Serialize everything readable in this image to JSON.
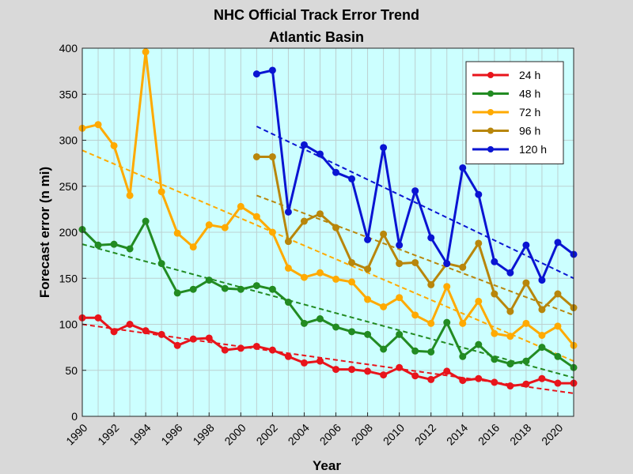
{
  "chart_data": {
    "type": "line",
    "title": "NHC Official Track Error Trend",
    "subtitle": "Atlantic Basin",
    "xlabel": "Year",
    "ylabel": "Forecast error (n mi)",
    "xlim": [
      1990,
      2021
    ],
    "ylim": [
      0,
      400
    ],
    "xticks": [
      "1990",
      "1992",
      "1994",
      "1996",
      "1998",
      "2000",
      "2002",
      "2004",
      "2006",
      "2008",
      "2010",
      "2012",
      "2014",
      "2016",
      "2018",
      "2020"
    ],
    "yticks": [
      "0",
      "50",
      "100",
      "150",
      "200",
      "250",
      "300",
      "350",
      "400"
    ],
    "grid": true,
    "legend_position": "top-right",
    "series": [
      {
        "name": "24 h",
        "color": "#e8141b",
        "x": [
          1990,
          1991,
          1992,
          1993,
          1994,
          1995,
          1996,
          1997,
          1998,
          1999,
          2000,
          2001,
          2002,
          2003,
          2004,
          2005,
          2006,
          2007,
          2008,
          2009,
          2010,
          2011,
          2012,
          2013,
          2014,
          2015,
          2016,
          2017,
          2018,
          2019,
          2020,
          2021
        ],
        "values": [
          107,
          107,
          92,
          100,
          93,
          89,
          77,
          84,
          85,
          72,
          74,
          76,
          72,
          65,
          58,
          60,
          51,
          51,
          49,
          45,
          53,
          44,
          40,
          49,
          39,
          41,
          37,
          33,
          35,
          41,
          36,
          36
        ],
        "trend": [
          100,
          25
        ]
      },
      {
        "name": "48 h",
        "color": "#228b22",
        "x": [
          1990,
          1991,
          1992,
          1993,
          1994,
          1995,
          1996,
          1997,
          1998,
          1999,
          2000,
          2001,
          2002,
          2003,
          2004,
          2005,
          2006,
          2007,
          2008,
          2009,
          2010,
          2011,
          2012,
          2013,
          2014,
          2015,
          2016,
          2017,
          2018,
          2019,
          2020,
          2021
        ],
        "values": [
          203,
          186,
          187,
          182,
          212,
          166,
          134,
          138,
          148,
          139,
          138,
          142,
          138,
          124,
          101,
          106,
          97,
          92,
          89,
          73,
          89,
          71,
          70,
          102,
          65,
          78,
          62,
          57,
          60,
          75,
          65,
          53
        ],
        "trend": [
          187,
          42
        ]
      },
      {
        "name": "72 h",
        "color": "#ffaa00",
        "x": [
          1990,
          1991,
          1992,
          1993,
          1994,
          1995,
          1996,
          1997,
          1998,
          1999,
          2000,
          2001,
          2002,
          2003,
          2004,
          2005,
          2006,
          2007,
          2008,
          2009,
          2010,
          2011,
          2012,
          2013,
          2014,
          2015,
          2016,
          2017,
          2018,
          2019,
          2020,
          2021
        ],
        "values": [
          313,
          317,
          294,
          240,
          396,
          244,
          199,
          184,
          208,
          205,
          228,
          217,
          200,
          161,
          151,
          156,
          149,
          146,
          127,
          119,
          129,
          110,
          101,
          141,
          101,
          125,
          90,
          87,
          101,
          88,
          98,
          77
        ],
        "trend": [
          289,
          60
        ]
      },
      {
        "name": "96 h",
        "color": "#b8860b",
        "x": [
          2001,
          2002,
          2003,
          2004,
          2005,
          2006,
          2007,
          2008,
          2009,
          2010,
          2011,
          2012,
          2013,
          2014,
          2015,
          2016,
          2017,
          2018,
          2019,
          2020,
          2021
        ],
        "values": [
          282,
          282,
          190,
          212,
          220,
          205,
          167,
          160,
          198,
          166,
          167,
          143,
          166,
          162,
          188,
          133,
          114,
          145,
          116,
          133,
          118
        ],
        "trend": [
          240,
          110
        ]
      },
      {
        "name": "120 h",
        "color": "#0a14d2",
        "x": [
          2001,
          2002,
          2003,
          2004,
          2005,
          2006,
          2007,
          2008,
          2009,
          2010,
          2011,
          2012,
          2013,
          2014,
          2015,
          2016,
          2017,
          2018,
          2019,
          2020,
          2021
        ],
        "values": [
          372,
          376,
          222,
          295,
          285,
          265,
          258,
          192,
          292,
          186,
          245,
          194,
          166,
          270,
          241,
          168,
          156,
          186,
          148,
          189,
          176
        ],
        "trend": [
          315,
          150
        ]
      }
    ]
  },
  "colors": {
    "figure_background": "#d9d9d9",
    "plot_background": "#ccffff",
    "grid": "#bcd0d0"
  }
}
